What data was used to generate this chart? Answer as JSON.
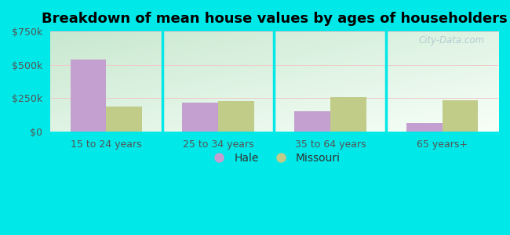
{
  "title": "Breakdown of mean house values by ages of householders",
  "categories": [
    "15 to 24 years",
    "25 to 34 years",
    "35 to 64 years",
    "65 years+"
  ],
  "hale_values": [
    540000,
    215000,
    155000,
    62000
  ],
  "missouri_values": [
    190000,
    228000,
    258000,
    232000
  ],
  "hale_color": "#c4a0d0",
  "missouri_color": "#c0cc88",
  "ylim": [
    0,
    750000
  ],
  "yticks": [
    0,
    250000,
    500000,
    750000
  ],
  "ytick_labels": [
    "$0",
    "$250k",
    "$500k",
    "$750k"
  ],
  "outer_bg": "#00e8e8",
  "bar_width": 0.32,
  "legend_hale": "Hale",
  "legend_missouri": "Missouri",
  "title_fontsize": 13,
  "axis_fontsize": 9,
  "legend_fontsize": 10,
  "grad_top_left": "#c8e8d0",
  "grad_bottom_right": "#f8fff8",
  "watermark": "City-Data.com"
}
